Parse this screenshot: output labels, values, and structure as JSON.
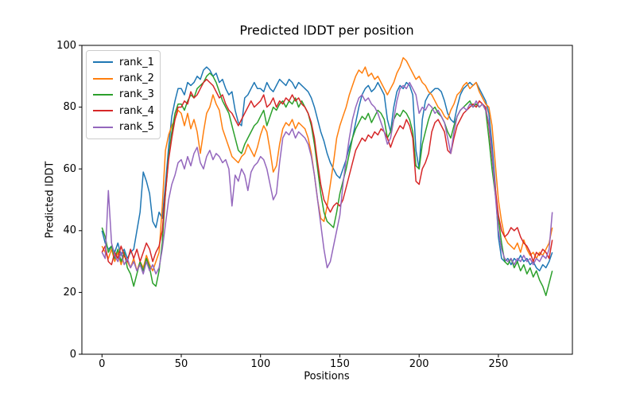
{
  "title": "Predicted lDDT per position",
  "xlabel": "Positions",
  "ylabel": "Predicted lDDT",
  "axes": {
    "xticks": [
      0,
      50,
      100,
      150,
      200,
      250
    ],
    "xtick_labels": [
      "0",
      "50",
      "100",
      "150",
      "200",
      "250"
    ],
    "yticks": [
      0,
      20,
      40,
      60,
      80,
      100
    ],
    "ytick_labels": [
      "0",
      "20",
      "40",
      "60",
      "80",
      "100"
    ]
  },
  "chart_data": {
    "type": "line",
    "title": "Predicted lDDT per position",
    "xlabel": "Positions",
    "ylabel": "Predicted lDDT",
    "xlim": [
      -12.7,
      296.7
    ],
    "ylim": [
      0,
      100
    ],
    "grid": false,
    "legend_position": "upper left",
    "x_start": 0,
    "x_step": 2,
    "series": [
      {
        "name": "rank_1",
        "color": "#1f77b4",
        "values": [
          40,
          36,
          34,
          35,
          33,
          36,
          32,
          34,
          31,
          33,
          34,
          40,
          46,
          59,
          56,
          52,
          43,
          41,
          46,
          44,
          55,
          67,
          77,
          82,
          86,
          86,
          84,
          88,
          87,
          88,
          90,
          89,
          92,
          93,
          92,
          90,
          91,
          88,
          89,
          86,
          84,
          85,
          79,
          75,
          74,
          83,
          84,
          86,
          88,
          86,
          86,
          85,
          88,
          86,
          85,
          87,
          89,
          88,
          87,
          89,
          88,
          86,
          88,
          87,
          86,
          85,
          83,
          80,
          76,
          72,
          69,
          65,
          62,
          60,
          58,
          57,
          60,
          63,
          67,
          70,
          75,
          80,
          84,
          86,
          87,
          85,
          86,
          88,
          86,
          84,
          76,
          72,
          80,
          85,
          87,
          86,
          88,
          87,
          84,
          66,
          60,
          76,
          82,
          84,
          85,
          86,
          86,
          85,
          82,
          78,
          76,
          75,
          80,
          84,
          86,
          87,
          88,
          87,
          88,
          86,
          84,
          82,
          78,
          68,
          55,
          38,
          31,
          30,
          31,
          29,
          31,
          30,
          32,
          30,
          31,
          29,
          30,
          28,
          27,
          29,
          28,
          30,
          33
        ]
      },
      {
        "name": "rank_2",
        "color": "#ff7f0e",
        "values": [
          35,
          33,
          31,
          34,
          30,
          33,
          29,
          32,
          30,
          28,
          31,
          27,
          30,
          28,
          32,
          29,
          27,
          30,
          33,
          48,
          66,
          71,
          74,
          76,
          79,
          78,
          74,
          78,
          73,
          76,
          72,
          65,
          72,
          78,
          80,
          84,
          81,
          79,
          73,
          70,
          67,
          64,
          63,
          62,
          64,
          65,
          68,
          66,
          64,
          67,
          71,
          74,
          72,
          66,
          59,
          61,
          68,
          73,
          75,
          74,
          76,
          73,
          75,
          74,
          73,
          70,
          65,
          58,
          50,
          44,
          43,
          48,
          55,
          62,
          70,
          74,
          77,
          80,
          84,
          87,
          90,
          92,
          91,
          93,
          90,
          91,
          89,
          90,
          88,
          86,
          84,
          86,
          88,
          91,
          93,
          96,
          95,
          93,
          91,
          89,
          90,
          88,
          87,
          85,
          84,
          82,
          80,
          79,
          77,
          76,
          79,
          81,
          84,
          85,
          87,
          88,
          86,
          87,
          88,
          85,
          83,
          81,
          80,
          74,
          62,
          50,
          43,
          38,
          36,
          35,
          34,
          36,
          33,
          37,
          34,
          32,
          33,
          31,
          33,
          32,
          34,
          36,
          41
        ]
      },
      {
        "name": "rank_3",
        "color": "#2ca02c",
        "values": [
          41,
          38,
          33,
          35,
          31,
          34,
          30,
          33,
          28,
          26,
          22,
          26,
          30,
          27,
          31,
          28,
          23,
          22,
          27,
          36,
          52,
          64,
          72,
          78,
          81,
          81,
          79,
          82,
          84,
          83,
          86,
          87,
          88,
          90,
          91,
          90,
          88,
          85,
          82,
          80,
          78,
          74,
          70,
          66,
          65,
          68,
          70,
          72,
          74,
          75,
          77,
          79,
          74,
          77,
          80,
          79,
          81,
          82,
          80,
          82,
          81,
          83,
          80,
          82,
          80,
          78,
          74,
          68,
          60,
          52,
          46,
          43,
          42,
          41,
          46,
          52,
          56,
          60,
          65,
          70,
          73,
          75,
          77,
          76,
          78,
          75,
          77,
          79,
          78,
          76,
          70,
          72,
          76,
          78,
          77,
          79,
          78,
          76,
          72,
          61,
          60,
          68,
          72,
          76,
          79,
          80,
          78,
          77,
          75,
          72,
          70,
          74,
          77,
          79,
          80,
          81,
          82,
          80,
          81,
          80,
          81,
          79,
          70,
          60,
          52,
          44,
          36,
          30,
          29,
          31,
          28,
          30,
          27,
          29,
          26,
          28,
          25,
          27,
          24,
          22,
          19,
          23,
          27
        ]
      },
      {
        "name": "rank_4",
        "color": "#d62728",
        "values": [
          33,
          35,
          30,
          29,
          33,
          31,
          35,
          32,
          30,
          34,
          31,
          34,
          30,
          33,
          36,
          34,
          30,
          33,
          35,
          40,
          52,
          63,
          70,
          76,
          80,
          80,
          82,
          81,
          85,
          83,
          84,
          86,
          88,
          89,
          88,
          87,
          85,
          83,
          84,
          81,
          79,
          78,
          76,
          74,
          76,
          78,
          80,
          82,
          80,
          81,
          82,
          84,
          80,
          81,
          83,
          80,
          82,
          81,
          83,
          82,
          84,
          82,
          83,
          81,
          80,
          78,
          75,
          70,
          62,
          55,
          50,
          48,
          46,
          48,
          49,
          48,
          50,
          54,
          58,
          62,
          66,
          68,
          70,
          69,
          71,
          70,
          72,
          71,
          73,
          72,
          70,
          67,
          70,
          72,
          74,
          73,
          76,
          74,
          70,
          56,
          55,
          60,
          62,
          65,
          72,
          75,
          76,
          74,
          72,
          66,
          65,
          70,
          74,
          76,
          78,
          79,
          80,
          81,
          80,
          82,
          81,
          80,
          74,
          64,
          54,
          45,
          40,
          38,
          39,
          41,
          40,
          41,
          38,
          36,
          35,
          33,
          30,
          33,
          32,
          34,
          33,
          31,
          37
        ]
      },
      {
        "name": "rank_5",
        "color": "#9467bd",
        "values": [
          33,
          31,
          53,
          36,
          32,
          30,
          33,
          29,
          31,
          28,
          30,
          27,
          29,
          26,
          30,
          27,
          29,
          26,
          28,
          34,
          42,
          50,
          55,
          58,
          62,
          63,
          60,
          64,
          61,
          65,
          67,
          62,
          60,
          64,
          66,
          63,
          65,
          64,
          62,
          63,
          60,
          48,
          58,
          56,
          60,
          58,
          53,
          59,
          61,
          62,
          64,
          63,
          60,
          55,
          50,
          52,
          62,
          70,
          72,
          71,
          73,
          70,
          72,
          71,
          70,
          68,
          64,
          58,
          50,
          42,
          34,
          28,
          30,
          35,
          40,
          45,
          55,
          63,
          70,
          76,
          80,
          83,
          84,
          82,
          83,
          81,
          80,
          78,
          75,
          72,
          68,
          70,
          76,
          82,
          86,
          87,
          86,
          88,
          86,
          84,
          78,
          80,
          79,
          81,
          80,
          78,
          79,
          77,
          75,
          70,
          65,
          72,
          77,
          79,
          80,
          79,
          81,
          80,
          82,
          80,
          81,
          79,
          75,
          65,
          52,
          40,
          34,
          31,
          30,
          31,
          29,
          31,
          30,
          32,
          30,
          31,
          29,
          31,
          30,
          32,
          31,
          34,
          46
        ]
      }
    ]
  }
}
